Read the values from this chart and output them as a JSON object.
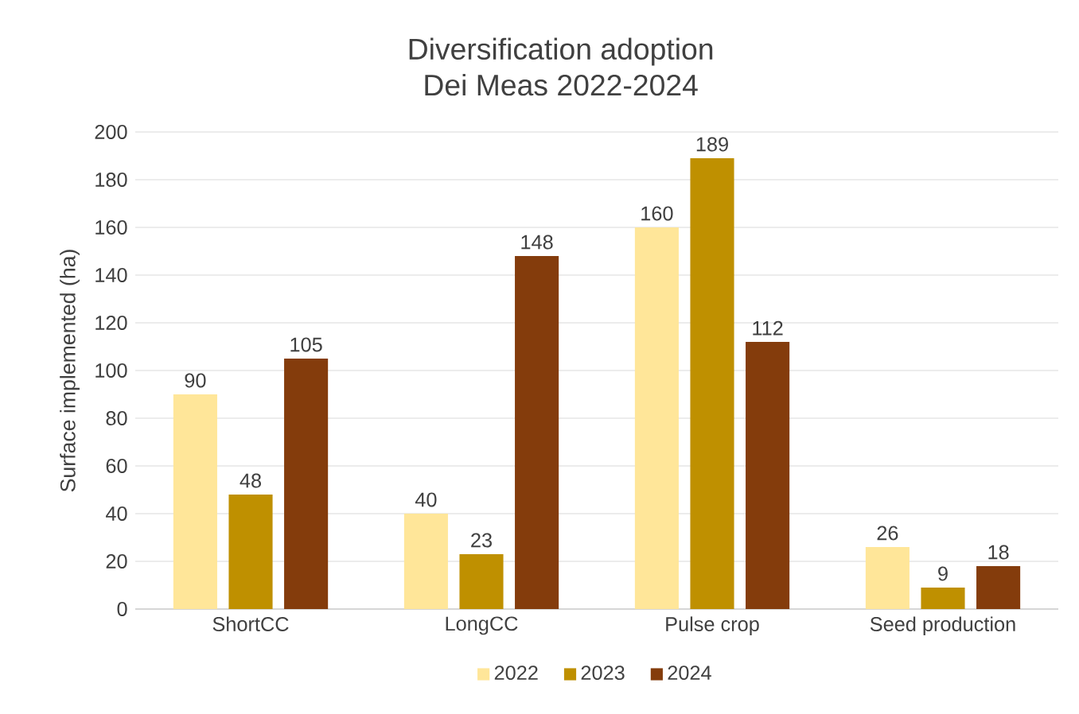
{
  "chart_data": {
    "type": "bar",
    "title": "Diversification adoption",
    "subtitle": "Dei Meas 2022-2024",
    "ylabel": "Surface implemented (ha)",
    "categories": [
      "ShortCC",
      "LongCC",
      "Pulse crop",
      "Seed production"
    ],
    "series": [
      {
        "name": "2022",
        "color": "#ffe699",
        "values": [
          90,
          40,
          160,
          26
        ]
      },
      {
        "name": "2023",
        "color": "#bf9000",
        "values": [
          48,
          23,
          189,
          9
        ]
      },
      {
        "name": "2024",
        "color": "#843c0c",
        "values": [
          105,
          148,
          112,
          18
        ]
      }
    ],
    "ylim": [
      0,
      200
    ],
    "yticks": [
      0,
      20,
      40,
      60,
      80,
      100,
      120,
      140,
      160,
      180,
      200
    ],
    "grid": "y",
    "legend": "bottom",
    "data_labels": true
  }
}
